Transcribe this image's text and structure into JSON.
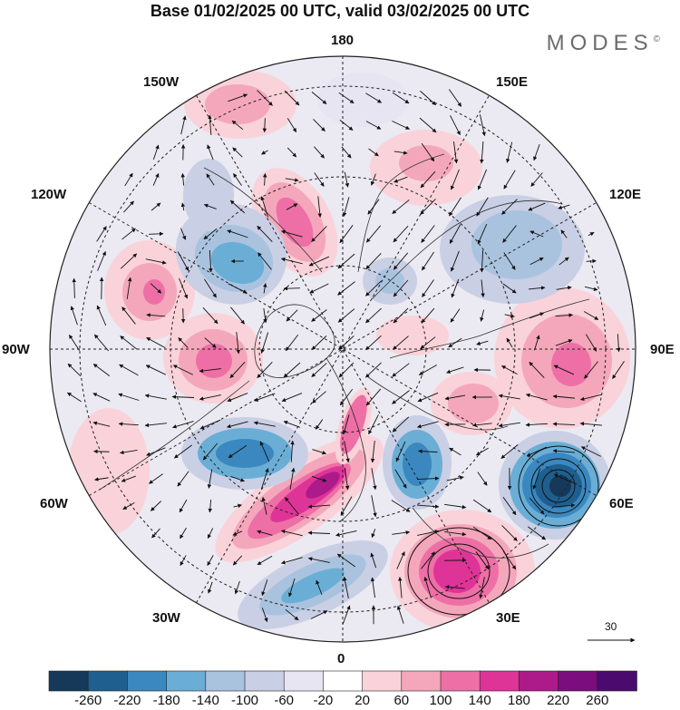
{
  "title": "Base 01/02/2025 00 UTC, valid 03/02/2025 00 UTC",
  "brand": "MODES",
  "brand_mark": "©",
  "longitude_labels": {
    "lon_180": "180",
    "lon_150e": "150E",
    "lon_120e": "120E",
    "lon_90e": "90E",
    "lon_60e": "60E",
    "lon_30e": "30E",
    "lon_0": "0",
    "lon_30w": "30W",
    "lon_60w": "60W",
    "lon_90w": "90W",
    "lon_120w": "120W",
    "lon_150w": "150W"
  },
  "vector_scale": {
    "label": "30"
  },
  "colorbar": {
    "ticks": [
      "-260",
      "-220",
      "-180",
      "-140",
      "-100",
      "-60",
      "-20",
      "20",
      "60",
      "100",
      "140",
      "180",
      "220",
      "260"
    ],
    "colors": [
      "#16395a",
      "#1f5f8f",
      "#3a88bf",
      "#6aaed6",
      "#a9c3df",
      "#c9cfe4",
      "#e7e5f2",
      "#ffffff",
      "#f9d3d9",
      "#f4a7bb",
      "#ee6fa6",
      "#de3497",
      "#ad1a8a",
      "#7b0d7f",
      "#4b0b6e"
    ]
  },
  "map_data": {
    "projection": "north polar stereographic",
    "field": "shaded anomaly with wind vectors",
    "anomaly_centers": [
      {
        "id": "pos-north-atlantic-europe",
        "sign": "positive",
        "peak": 220
      },
      {
        "id": "pos-eastern-europe",
        "sign": "positive",
        "peak": 220
      },
      {
        "id": "pos-hudson-bay",
        "sign": "positive",
        "peak": 140
      },
      {
        "id": "pos-alaska",
        "sign": "positive",
        "peak": 180
      },
      {
        "id": "pos-central-asia",
        "sign": "positive",
        "peak": 140
      },
      {
        "id": "pos-northeast-pacific",
        "sign": "positive",
        "peak": 100
      },
      {
        "id": "neg-caspian",
        "sign": "negative",
        "peak": -260
      },
      {
        "id": "neg-greenland-labrador",
        "sign": "negative",
        "peak": -180
      },
      {
        "id": "neg-scandinavia",
        "sign": "negative",
        "peak": -180
      },
      {
        "id": "neg-canada",
        "sign": "negative",
        "peak": -140
      },
      {
        "id": "neg-siberia",
        "sign": "negative",
        "peak": -100
      },
      {
        "id": "neg-atlantic-south",
        "sign": "negative",
        "peak": -140
      }
    ]
  }
}
